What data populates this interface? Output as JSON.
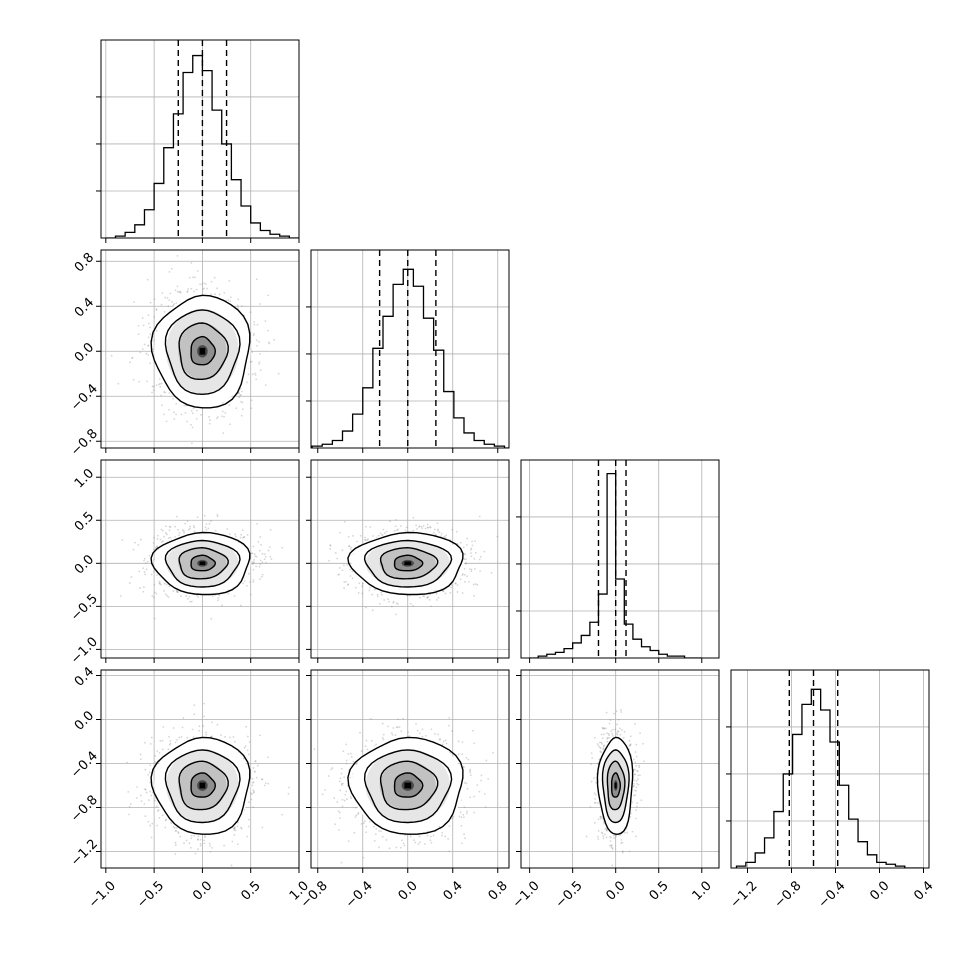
{
  "chart_data": {
    "type": "corner",
    "parameters": 4,
    "grid": true,
    "axes": [
      {
        "name": "",
        "range": [
          -1.05,
          1.0
        ],
        "ticks": [
          -1.0,
          -0.5,
          0.0,
          0.5,
          1.0
        ],
        "tick_labels": [
          "−1.0",
          "−0.5",
          "0.0",
          "0.5",
          "1.0"
        ]
      },
      {
        "name": "",
        "range": [
          -0.86,
          0.9
        ],
        "ticks": [
          -0.8,
          -0.4,
          0.0,
          0.4,
          0.8
        ],
        "tick_labels": [
          "−0.8",
          "−0.4",
          "0.0",
          "0.4",
          "0.8"
        ]
      },
      {
        "name": "",
        "range": [
          -1.1,
          1.2
        ],
        "ticks": [
          -1.0,
          -0.5,
          0.0,
          0.5,
          1.0
        ],
        "tick_labels": [
          "−1.0",
          "−0.5",
          "0.0",
          "0.5",
          "1.0"
        ]
      },
      {
        "name": "",
        "range": [
          -1.35,
          0.45
        ],
        "ticks": [
          -1.2,
          -0.8,
          -0.4,
          0.0,
          0.4
        ],
        "tick_labels": [
          "−1.2",
          "−0.8",
          "−0.4",
          "0.0",
          "0.4"
        ]
      }
    ],
    "histograms": [
      {
        "param": 0,
        "bins": [
          -1.0,
          0.1
        ],
        "peak_counts": 0.97,
        "quantile_lines": [
          -0.25,
          0.0,
          0.25
        ],
        "counts": [
          0.0,
          0.01,
          0.03,
          0.07,
          0.15,
          0.29,
          0.48,
          0.66,
          0.88,
          0.97,
          0.89,
          0.68,
          0.5,
          0.31,
          0.17,
          0.08,
          0.04,
          0.02,
          0.01,
          0.0
        ]
      },
      {
        "param": 1,
        "bins": [
          -0.85,
          0.09
        ],
        "peak_counts": 0.95,
        "quantile_lines": [
          -0.25,
          0.0,
          0.25
        ],
        "counts": [
          0.01,
          0.02,
          0.04,
          0.09,
          0.18,
          0.32,
          0.53,
          0.7,
          0.87,
          0.95,
          0.86,
          0.69,
          0.52,
          0.3,
          0.16,
          0.08,
          0.04,
          0.02,
          0.01,
          0.0
        ]
      },
      {
        "param": 2,
        "bins": [
          -1.0,
          0.1
        ],
        "peak_counts": 0.98,
        "quantile_lines": [
          -0.2,
          0.0,
          0.12
        ],
        "counts": [
          0.0,
          0.01,
          0.02,
          0.03,
          0.05,
          0.08,
          0.12,
          0.19,
          0.34,
          0.98,
          0.42,
          0.18,
          0.1,
          0.06,
          0.04,
          0.02,
          0.01,
          0.01,
          0.0,
          0.0
        ]
      },
      {
        "param": 3,
        "bins": [
          -1.3,
          0.085
        ],
        "peak_counts": 0.95,
        "quantile_lines": [
          -0.82,
          -0.6,
          -0.38
        ],
        "counts": [
          0.01,
          0.03,
          0.08,
          0.16,
          0.3,
          0.5,
          0.71,
          0.87,
          0.95,
          0.84,
          0.67,
          0.44,
          0.26,
          0.14,
          0.07,
          0.03,
          0.02,
          0.01,
          0.0,
          0.0
        ]
      }
    ],
    "joint": [
      {
        "x_param": 0,
        "y_param": 1,
        "center": [
          0.0,
          0.0
        ],
        "sd": [
          0.25,
          0.25
        ],
        "contours_sd": [
          0.5,
          1.0,
          1.5,
          2.0
        ]
      },
      {
        "x_param": 0,
        "y_param": 2,
        "center": [
          0.0,
          0.0
        ],
        "sd": [
          0.25,
          0.18
        ],
        "contours_sd": [
          0.5,
          1.0,
          1.5,
          2.0
        ]
      },
      {
        "x_param": 1,
        "y_param": 2,
        "center": [
          0.0,
          0.0
        ],
        "sd": [
          0.25,
          0.18
        ],
        "contours_sd": [
          0.5,
          1.0,
          1.5,
          2.0
        ]
      },
      {
        "x_param": 0,
        "y_param": 3,
        "center": [
          0.0,
          -0.6
        ],
        "sd": [
          0.25,
          0.22
        ],
        "contours_sd": [
          0.5,
          1.0,
          1.5,
          2.0
        ]
      },
      {
        "x_param": 1,
        "y_param": 3,
        "center": [
          0.0,
          -0.6
        ],
        "sd": [
          0.25,
          0.22
        ],
        "contours_sd": [
          0.5,
          1.0,
          1.5,
          2.0
        ]
      },
      {
        "x_param": 2,
        "y_param": 3,
        "center": [
          0.0,
          -0.6
        ],
        "sd": [
          0.1,
          0.22
        ],
        "contours_sd": [
          0.5,
          1.0,
          1.5,
          2.0
        ]
      }
    ]
  }
}
